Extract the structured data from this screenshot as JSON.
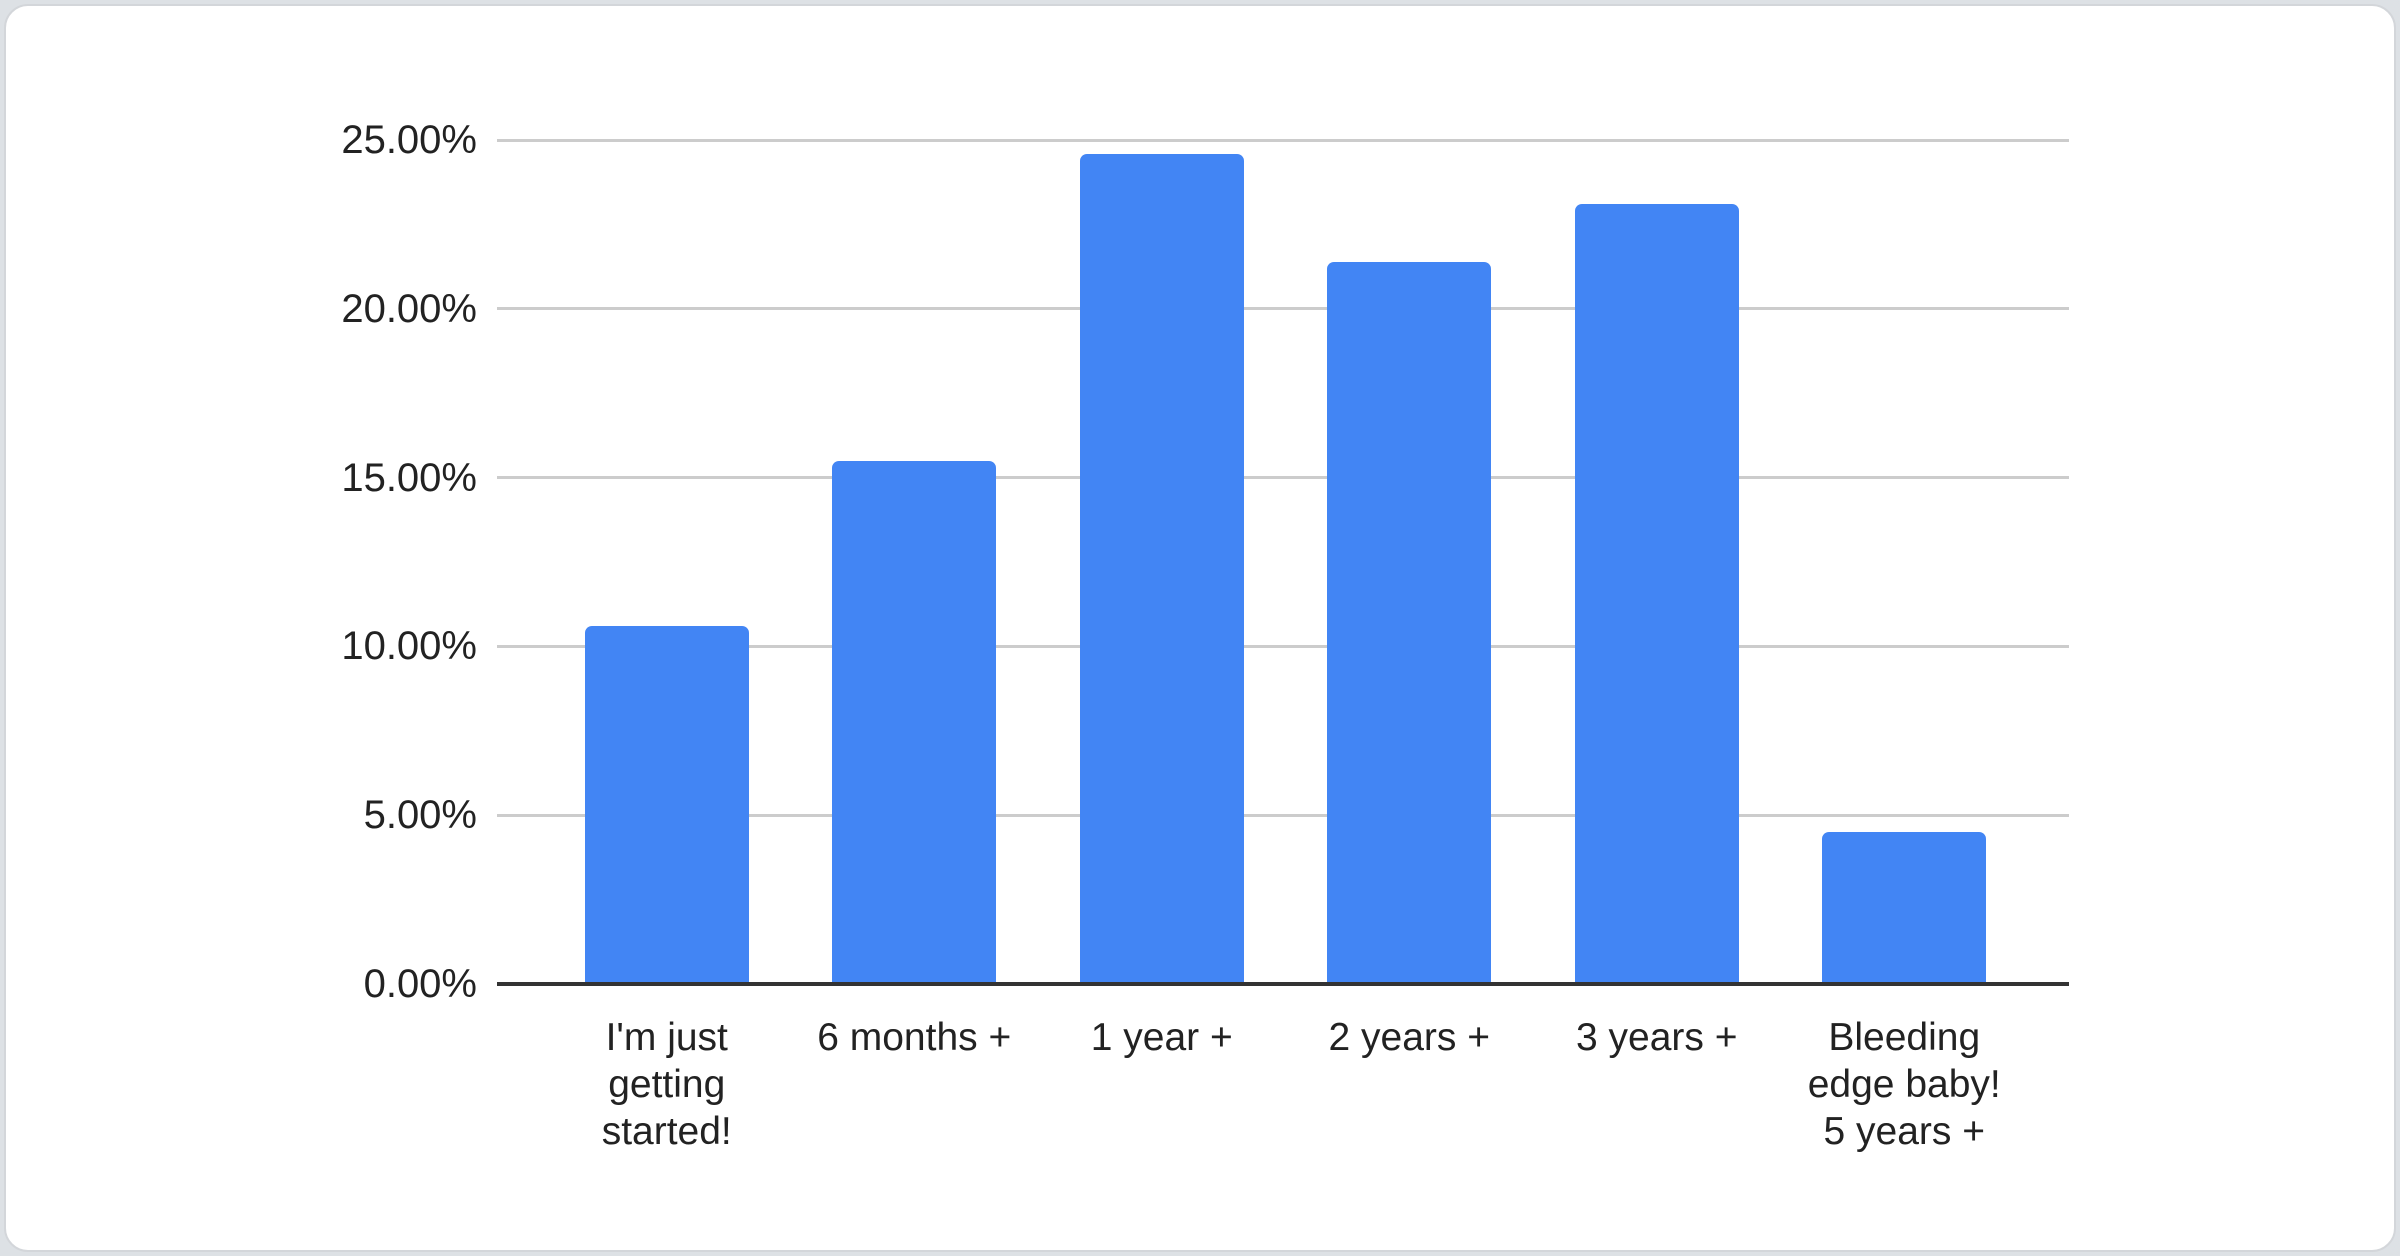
{
  "page": {
    "background_color": "#dde1e5",
    "card_background_color": "#ffffff",
    "card_border_color": "#d3d6da"
  },
  "chart_data": {
    "type": "bar",
    "title": "",
    "xlabel": "",
    "ylabel": "",
    "legend": "none",
    "grid": true,
    "categories": [
      "I'm just getting started!",
      "6 months +",
      "1 year +",
      "2 years +",
      "3 years +",
      "Bleeding edge baby! 5 years +"
    ],
    "category_lines": [
      [
        "I'm just",
        "getting",
        "started!"
      ],
      [
        "6 months +"
      ],
      [
        "1 year +"
      ],
      [
        "2 years +"
      ],
      [
        "3 years +"
      ],
      [
        "Bleeding",
        "edge baby!",
        "5 years +"
      ]
    ],
    "values": [
      10.6,
      15.5,
      24.6,
      21.4,
      23.1,
      4.5
    ],
    "value_suffix": "%",
    "ylim": [
      0,
      25
    ],
    "ytick_step": 5,
    "ytick_labels": [
      "0.00%",
      "5.00%",
      "10.00%",
      "15.00%",
      "20.00%",
      "25.00%"
    ],
    "bar_color": "#4285f4",
    "gridline_color": "#cccccc",
    "axis_line_color": "#333333",
    "label_color": "#222222"
  }
}
